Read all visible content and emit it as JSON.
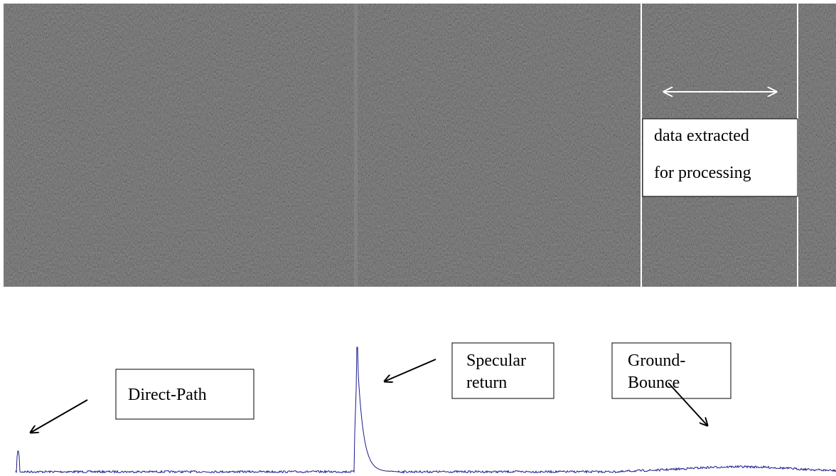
{
  "radar_image": {
    "extraction_label": [
      "data extracted",
      "for processing"
    ]
  },
  "waveform": {
    "annotations": {
      "direct_path": [
        "Direct-Path"
      ],
      "specular": [
        "Specular",
        "return"
      ],
      "ground_bounce": [
        "Ground-",
        "Bounce"
      ]
    }
  }
}
